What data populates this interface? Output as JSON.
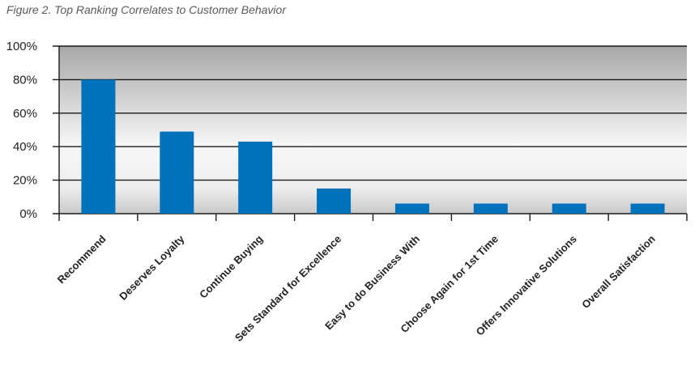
{
  "caption": "Figure 2. Top Ranking Correlates to Customer Behavior",
  "colors": {
    "bar": "#0072bc",
    "grid": "#1a1a1a",
    "plot_top": "#a8a8a8",
    "plot_bottom": "#f7f7f7",
    "text": "#222222"
  },
  "chart_data": {
    "type": "bar",
    "title": "Figure 2. Top Ranking Correlates to Customer Behavior",
    "xlabel": "",
    "ylabel": "",
    "categories": [
      "Recommend",
      "Deserves Loyalty",
      "Continue Buying",
      "Sets Standard for Excellence",
      "Easy to do Business With",
      "Choose Again for 1st Time",
      "Offers Innovative Solutions",
      "Overall Satisfaction"
    ],
    "values": [
      80,
      49,
      43,
      15,
      6,
      6,
      6,
      6
    ],
    "ylim": [
      0,
      100
    ],
    "y_ticks": [
      "0%",
      "20%",
      "40%",
      "60%",
      "80%",
      "100%"
    ],
    "y_tick_values": [
      0,
      20,
      40,
      60,
      80,
      100
    ],
    "grid": true,
    "legend": "none"
  }
}
